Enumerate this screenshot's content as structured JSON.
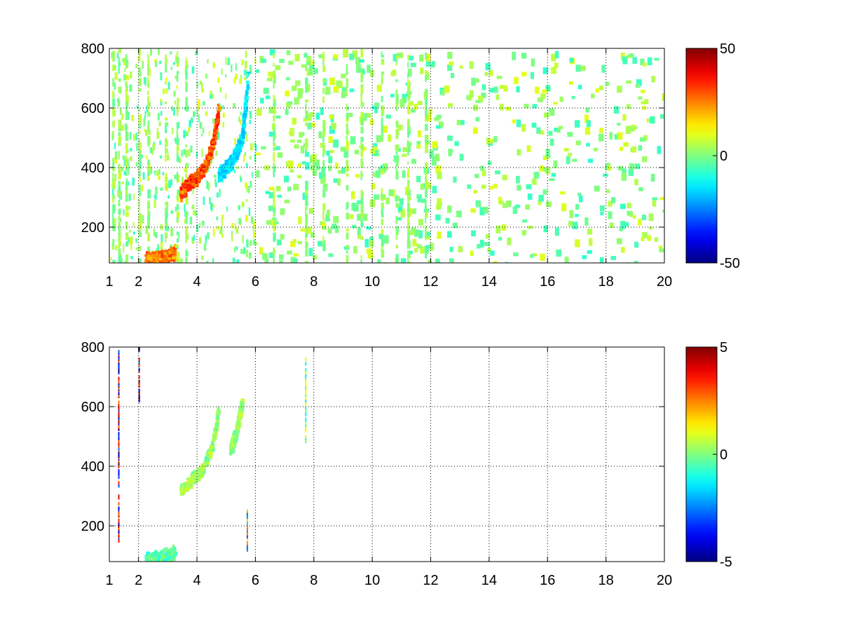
{
  "chart_data": [
    {
      "type": "heatmap",
      "title": "",
      "xlabel": "",
      "ylabel": "",
      "xlim": [
        1,
        20
      ],
      "ylim": [
        80,
        800
      ],
      "xticks": [
        1,
        2,
        4,
        6,
        8,
        10,
        12,
        14,
        16,
        18,
        20
      ],
      "yticks": [
        200,
        400,
        600,
        800
      ],
      "grid": true,
      "colormap": "jet",
      "colorbar": {
        "min": -50,
        "max": 50,
        "ticks": [
          50,
          0,
          -50
        ]
      },
      "blank_value_rendering": "white",
      "features": [
        {
          "name": "lower arc",
          "x": [
            2.2,
            2.6,
            3.0,
            3.2
          ],
          "y": [
            95,
            100,
            110,
            120
          ],
          "value": 30
        },
        {
          "name": "middle arc",
          "x": [
            3.4,
            3.8,
            4.2,
            4.5,
            4.7
          ],
          "y": [
            320,
            360,
            400,
            480,
            600
          ],
          "value": 35
        },
        {
          "name": "blue arc",
          "x": [
            4.7,
            5.1,
            5.5,
            5.7
          ],
          "y": [
            380,
            420,
            500,
            700
          ],
          "value": -18
        }
      ],
      "scattered_values_range": [
        -8,
        10
      ]
    },
    {
      "type": "heatmap",
      "title": "",
      "xlabel": "",
      "ylabel": "",
      "xlim": [
        1,
        20
      ],
      "ylim": [
        80,
        800
      ],
      "xticks": [
        1,
        2,
        4,
        6,
        8,
        10,
        12,
        14,
        16,
        18,
        20
      ],
      "yticks": [
        200,
        400,
        600,
        800
      ],
      "grid": true,
      "colormap": "jet",
      "colorbar": {
        "min": -5,
        "max": 5,
        "ticks": [
          5,
          0,
          -5
        ]
      },
      "blank_value_rendering": "white",
      "features": [
        {
          "name": "lower arc",
          "x": [
            2.2,
            2.6,
            3.0,
            3.2
          ],
          "y": [
            95,
            100,
            110,
            120
          ],
          "value": -0.5
        },
        {
          "name": "middle arc",
          "x": [
            3.4,
            3.8,
            4.2,
            4.5,
            4.7
          ],
          "y": [
            320,
            360,
            400,
            480,
            600
          ],
          "value": 0.3
        },
        {
          "name": "right arc",
          "x": [
            5.1,
            5.3,
            5.5
          ],
          "y": [
            460,
            520,
            620
          ],
          "value": 0.2
        },
        {
          "name": "streak x=1.3",
          "x": 1.3,
          "y_range": [
            150,
            790
          ],
          "value": 5
        },
        {
          "name": "streak x=2",
          "x": 2.0,
          "y_range": [
            620,
            800
          ],
          "value": 5
        },
        {
          "name": "streak x=7.7",
          "x": 7.7,
          "y_range": [
            460,
            770
          ],
          "value": 1.5
        },
        {
          "name": "streak x=5.7",
          "x": 5.7,
          "y_range": [
            120,
            260
          ],
          "value": 3
        }
      ]
    }
  ]
}
